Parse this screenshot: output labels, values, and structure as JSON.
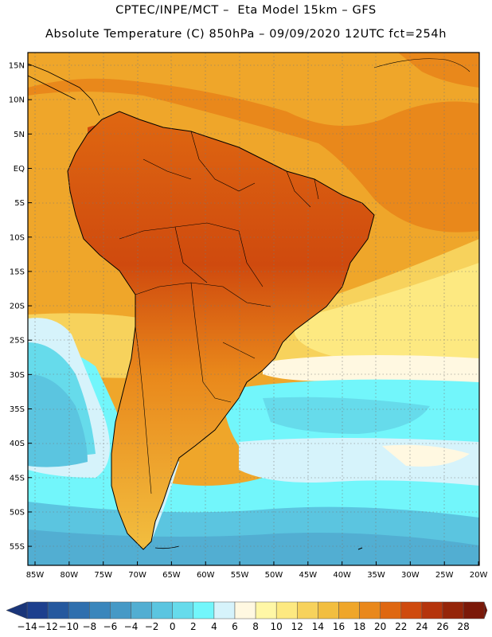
{
  "header": {
    "line1": "CPTEC/INPE/MCT –  Eta Model 15km – GFS",
    "line2": "Absolute Temperature (C) 850hPa – 09/09/2020 12UTC fct=254h"
  },
  "map": {
    "lat_labels": [
      "15N",
      "10N",
      "5N",
      "EQ",
      "5S",
      "10S",
      "15S",
      "20S",
      "25S",
      "30S",
      "35S",
      "40S",
      "45S",
      "50S",
      "55S"
    ],
    "lon_labels": [
      "85W",
      "80W",
      "75W",
      "70W",
      "65W",
      "60W",
      "55W",
      "50W",
      "45W",
      "40W",
      "35W",
      "30W",
      "25W",
      "20W"
    ]
  },
  "colorbar": {
    "labels": [
      "-14",
      "-12",
      "-10",
      "-8",
      "-6",
      "-4",
      "-2",
      "0",
      "2",
      "4",
      "6",
      "8",
      "10",
      "12",
      "14",
      "16",
      "18",
      "20",
      "22",
      "24",
      "26",
      "28"
    ],
    "colors": [
      "#1d3f8e",
      "#25589e",
      "#2f6fae",
      "#3a86bc",
      "#4699c6",
      "#52aed2",
      "#5bc5e0",
      "#66dbeb",
      "#72f6fb",
      "#d6f3fb",
      "#fff8e1",
      "#fff7a6",
      "#fde981",
      "#f7d25c",
      "#f2be3f",
      "#efa62a",
      "#e9881b",
      "#df6711",
      "#cf4a0e",
      "#b5340c",
      "#952509",
      "#7b1808"
    ],
    "under_color": "#1a3579",
    "over_color": "#6e1005"
  }
}
